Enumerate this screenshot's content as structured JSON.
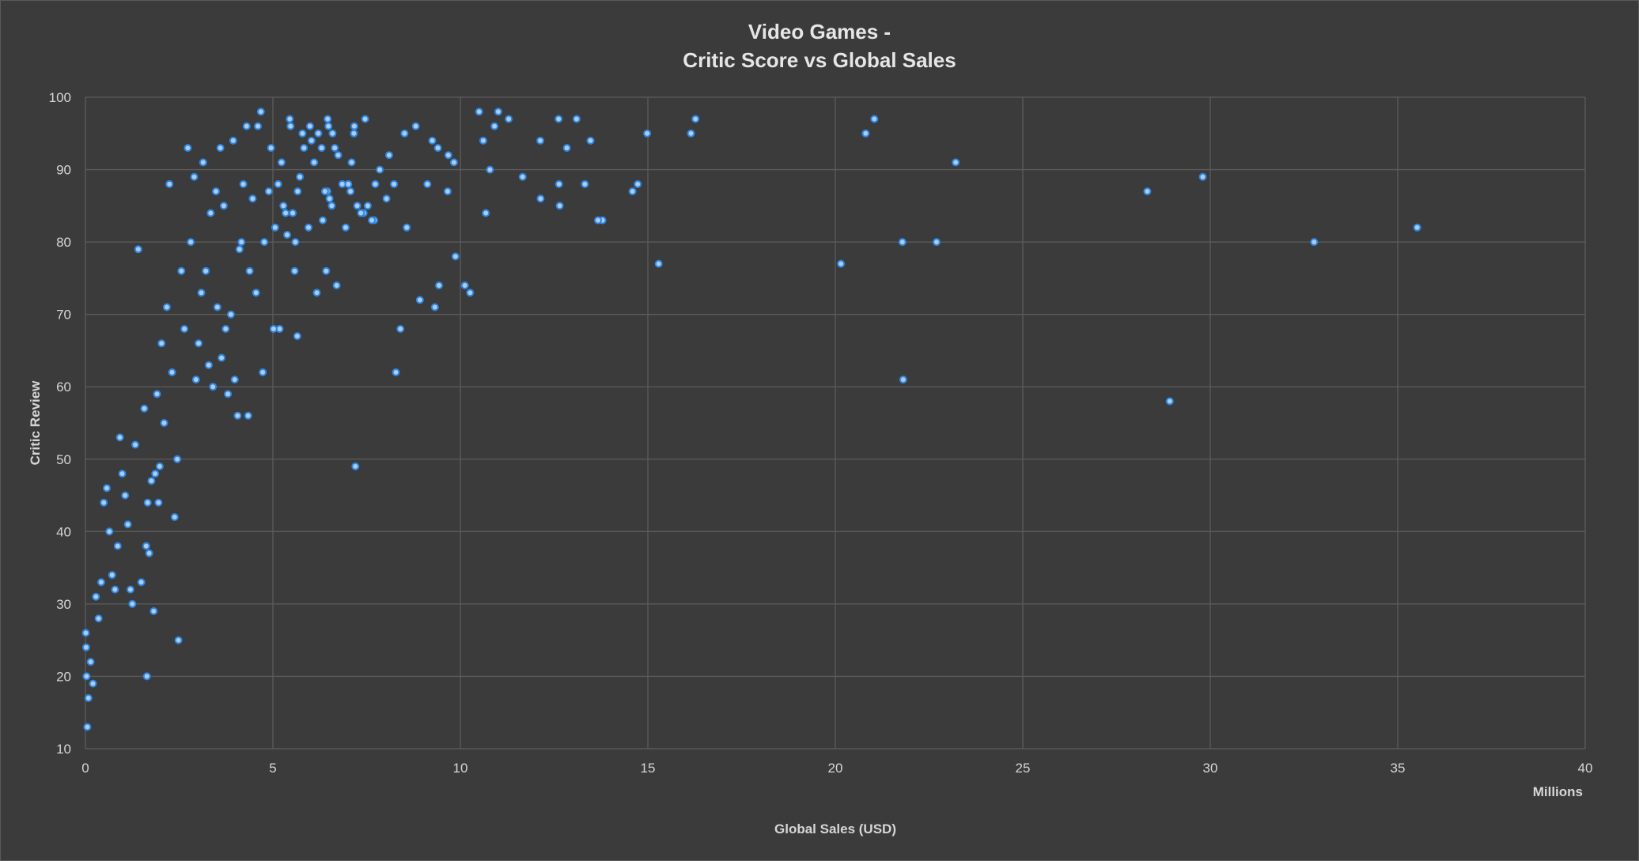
{
  "chart_data": {
    "type": "scatter",
    "title": [
      "Video Games -",
      "Critic Score vs Global Sales"
    ],
    "xlabel": "Global Sales (USD)",
    "x_unit_label": "Millions",
    "ylabel": "Critic Review",
    "xlim": [
      0,
      40
    ],
    "ylim": [
      10,
      100
    ],
    "x_ticks": [
      "0",
      "5",
      "10",
      "15",
      "20",
      "25",
      "30",
      "35",
      "40"
    ],
    "y_ticks": [
      "10",
      "20",
      "30",
      "40",
      "50",
      "60",
      "70",
      "80",
      "90",
      "100"
    ],
    "grid": true,
    "colors": {
      "background": "#3b3b3b",
      "grid": "#5c5c5c",
      "marker_fill": "#a9ccf2",
      "marker_edge": "#2e86e0",
      "text": "#d6d6d6"
    },
    "series": [
      {
        "points": [
          [
            35.52,
            82
          ],
          [
            32.77,
            80
          ],
          [
            29.8,
            89
          ],
          [
            28.92,
            58
          ],
          [
            28.32,
            87
          ],
          [
            23.21,
            91
          ],
          [
            22.7,
            80
          ],
          [
            21.81,
            61
          ],
          [
            21.79,
            80
          ],
          [
            21.04,
            97
          ],
          [
            20.81,
            95
          ],
          [
            20.15,
            77
          ],
          [
            16.27,
            97
          ],
          [
            16.15,
            95
          ],
          [
            15.29,
            77
          ],
          [
            14.98,
            95
          ],
          [
            14.73,
            88
          ],
          [
            14.59,
            87
          ],
          [
            13.79,
            83
          ],
          [
            13.67,
            83
          ],
          [
            13.47,
            94
          ],
          [
            13.32,
            88
          ],
          [
            13.1,
            97
          ],
          [
            12.84,
            93
          ],
          [
            12.65,
            85
          ],
          [
            12.63,
            88
          ],
          [
            12.62,
            97
          ],
          [
            12.14,
            86
          ],
          [
            12.13,
            94
          ],
          [
            11.66,
            89
          ],
          [
            11.29,
            97
          ],
          [
            11.01,
            98
          ],
          [
            10.91,
            96
          ],
          [
            10.79,
            90
          ],
          [
            10.68,
            84
          ],
          [
            10.61,
            94
          ],
          [
            10.5,
            98
          ],
          [
            10.26,
            73
          ],
          [
            10.12,
            74
          ],
          [
            9.87,
            78
          ],
          [
            9.83,
            91
          ],
          [
            9.68,
            92
          ],
          [
            9.66,
            87
          ],
          [
            9.43,
            74
          ],
          [
            9.4,
            93
          ],
          [
            9.32,
            71
          ],
          [
            9.25,
            94
          ],
          [
            9.12,
            88
          ],
          [
            8.92,
            72
          ],
          [
            8.81,
            96
          ],
          [
            8.57,
            82
          ],
          [
            8.51,
            95
          ],
          [
            8.4,
            68
          ],
          [
            8.28,
            62
          ],
          [
            8.23,
            88
          ],
          [
            8.1,
            92
          ],
          [
            8.03,
            86
          ],
          [
            7.85,
            90
          ],
          [
            7.73,
            88
          ],
          [
            7.7,
            83
          ],
          [
            7.64,
            83
          ],
          [
            7.53,
            85
          ],
          [
            7.46,
            97
          ],
          [
            7.42,
            84
          ],
          [
            7.35,
            84
          ],
          [
            7.25,
            85
          ],
          [
            7.2,
            49
          ],
          [
            7.17,
            96
          ],
          [
            7.16,
            95
          ],
          [
            7.1,
            91
          ],
          [
            7.07,
            87
          ],
          [
            7.01,
            88
          ],
          [
            6.94,
            82
          ],
          [
            6.85,
            88
          ],
          [
            6.74,
            92
          ],
          [
            6.7,
            74
          ],
          [
            6.65,
            93
          ],
          [
            6.59,
            95
          ],
          [
            6.57,
            85
          ],
          [
            6.51,
            86
          ],
          [
            6.48,
            96
          ],
          [
            6.46,
            97
          ],
          [
            6.45,
            87
          ],
          [
            6.42,
            76
          ],
          [
            6.39,
            87
          ],
          [
            6.33,
            83
          ],
          [
            6.3,
            93
          ],
          [
            6.21,
            95
          ],
          [
            6.17,
            73
          ],
          [
            6.1,
            91
          ],
          [
            6.03,
            94
          ],
          [
            5.99,
            96
          ],
          [
            5.95,
            82
          ],
          [
            5.83,
            93
          ],
          [
            5.79,
            95
          ],
          [
            5.72,
            89
          ],
          [
            5.66,
            87
          ],
          [
            5.65,
            67
          ],
          [
            5.6,
            80
          ],
          [
            5.58,
            76
          ],
          [
            5.53,
            84
          ],
          [
            5.47,
            96
          ],
          [
            5.45,
            97
          ],
          [
            5.38,
            81
          ],
          [
            5.34,
            84
          ],
          [
            5.28,
            85
          ],
          [
            5.23,
            91
          ],
          [
            5.18,
            68
          ],
          [
            5.14,
            88
          ],
          [
            5.06,
            82
          ],
          [
            5.02,
            68
          ],
          [
            4.95,
            93
          ],
          [
            4.89,
            87
          ],
          [
            4.77,
            80
          ],
          [
            4.73,
            62
          ],
          [
            4.68,
            98
          ],
          [
            4.6,
            96
          ],
          [
            4.55,
            73
          ],
          [
            4.46,
            86
          ],
          [
            4.38,
            76
          ],
          [
            4.34,
            56
          ],
          [
            4.3,
            96
          ],
          [
            4.21,
            88
          ],
          [
            4.16,
            80
          ],
          [
            4.11,
            79
          ],
          [
            4.06,
            56
          ],
          [
            3.98,
            61
          ],
          [
            3.94,
            94
          ],
          [
            3.88,
            70
          ],
          [
            3.8,
            59
          ],
          [
            3.74,
            68
          ],
          [
            3.69,
            85
          ],
          [
            3.63,
            64
          ],
          [
            3.6,
            93
          ],
          [
            3.52,
            71
          ],
          [
            3.48,
            87
          ],
          [
            3.4,
            60
          ],
          [
            3.34,
            84
          ],
          [
            3.29,
            63
          ],
          [
            3.21,
            76
          ],
          [
            3.14,
            91
          ],
          [
            3.09,
            73
          ],
          [
            3.02,
            66
          ],
          [
            2.95,
            61
          ],
          [
            2.9,
            89
          ],
          [
            2.81,
            80
          ],
          [
            2.73,
            93
          ],
          [
            2.64,
            68
          ],
          [
            2.56,
            76
          ],
          [
            2.48,
            25
          ],
          [
            2.45,
            50
          ],
          [
            2.38,
            42
          ],
          [
            2.31,
            62
          ],
          [
            2.24,
            88
          ],
          [
            2.17,
            71
          ],
          [
            2.1,
            55
          ],
          [
            2.03,
            66
          ],
          [
            1.98,
            49
          ],
          [
            1.95,
            44
          ],
          [
            1.91,
            59
          ],
          [
            1.86,
            48
          ],
          [
            1.82,
            29
          ],
          [
            1.76,
            47
          ],
          [
            1.7,
            37
          ],
          [
            1.66,
            44
          ],
          [
            1.64,
            20
          ],
          [
            1.62,
            38
          ],
          [
            1.57,
            57
          ],
          [
            1.49,
            33
          ],
          [
            1.41,
            79
          ],
          [
            1.33,
            52
          ],
          [
            1.25,
            30
          ],
          [
            1.2,
            32
          ],
          [
            1.13,
            41
          ],
          [
            1.06,
            45
          ],
          [
            0.98,
            48
          ],
          [
            0.92,
            53
          ],
          [
            0.86,
            38
          ],
          [
            0.79,
            32
          ],
          [
            0.71,
            34
          ],
          [
            0.64,
            40
          ],
          [
            0.57,
            46
          ],
          [
            0.49,
            44
          ],
          [
            0.42,
            33
          ],
          [
            0.35,
            28
          ],
          [
            0.28,
            31
          ],
          [
            0.2,
            19
          ],
          [
            0.14,
            22
          ],
          [
            0.08,
            17
          ],
          [
            0.05,
            13
          ],
          [
            0.03,
            20
          ],
          [
            0.02,
            24
          ],
          [
            0.01,
            26
          ]
        ]
      }
    ]
  }
}
